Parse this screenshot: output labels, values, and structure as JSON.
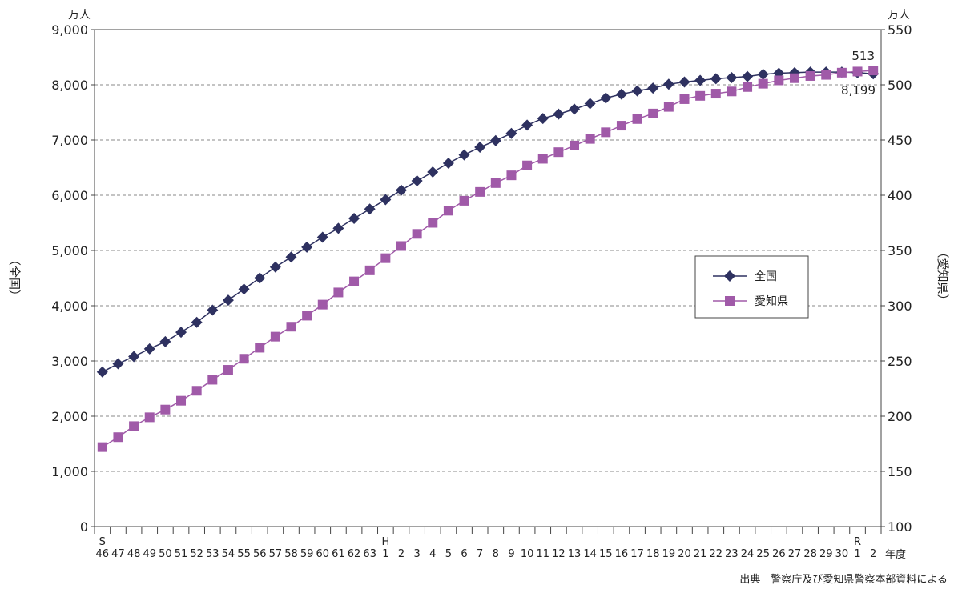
{
  "source_note": "出典　警察庁及び愛知県警察本部資料による",
  "chart_data": {
    "type": "line",
    "left_unit": "万人",
    "right_unit": "万人",
    "left_axis_label": "（全国）",
    "right_axis_label": "（愛知県）",
    "x_axis_unit": "年度",
    "left_ylim": [
      0,
      9000
    ],
    "left_ticks": [
      "0",
      "1,000",
      "2,000",
      "3,000",
      "4,000",
      "5,000",
      "6,000",
      "7,000",
      "8,000",
      "9,000"
    ],
    "right_ylim": [
      100,
      550
    ],
    "right_ticks": [
      "100",
      "150",
      "200",
      "250",
      "300",
      "350",
      "400",
      "450",
      "500",
      "550"
    ],
    "grid": true,
    "legend_position": "right-middle",
    "era_markers": [
      {
        "label": "S",
        "index": 0
      },
      {
        "label": "H",
        "index": 18
      },
      {
        "label": "R",
        "index": 48
      }
    ],
    "categories": [
      "46",
      "47",
      "48",
      "49",
      "50",
      "51",
      "52",
      "53",
      "54",
      "55",
      "56",
      "57",
      "58",
      "59",
      "60",
      "61",
      "62",
      "63",
      "1",
      "2",
      "3",
      "4",
      "5",
      "6",
      "7",
      "8",
      "9",
      "10",
      "11",
      "12",
      "13",
      "14",
      "15",
      "16",
      "17",
      "18",
      "19",
      "20",
      "21",
      "22",
      "23",
      "24",
      "25",
      "26",
      "27",
      "28",
      "29",
      "30",
      "1",
      "2"
    ],
    "series": [
      {
        "name": "全国",
        "axis": "left",
        "color": "#2e3160",
        "marker": "diamond",
        "values": [
          2800,
          2950,
          3080,
          3220,
          3350,
          3520,
          3700,
          3920,
          4100,
          4300,
          4500,
          4700,
          4880,
          5060,
          5240,
          5400,
          5580,
          5750,
          5920,
          6090,
          6260,
          6420,
          6580,
          6730,
          6870,
          6990,
          7120,
          7270,
          7390,
          7470,
          7560,
          7660,
          7760,
          7830,
          7890,
          7940,
          8010,
          8050,
          8080,
          8110,
          8130,
          8150,
          8190,
          8210,
          8220,
          8230,
          8230,
          8230,
          8220,
          8199
        ],
        "end_label": "8,199"
      },
      {
        "name": "愛知県",
        "axis": "right",
        "color": "#a05aa8",
        "marker": "square",
        "values": [
          172,
          181,
          191,
          199,
          206,
          214,
          223,
          233,
          242,
          252,
          262,
          272,
          281,
          291,
          301,
          312,
          322,
          332,
          343,
          354,
          365,
          375,
          386,
          395,
          403,
          411,
          418,
          427,
          433,
          439,
          445,
          451,
          457,
          463,
          469,
          474,
          480,
          487,
          490,
          492,
          494,
          498,
          501,
          504,
          506,
          508,
          509,
          511,
          512,
          513
        ],
        "end_label": "513"
      }
    ]
  }
}
